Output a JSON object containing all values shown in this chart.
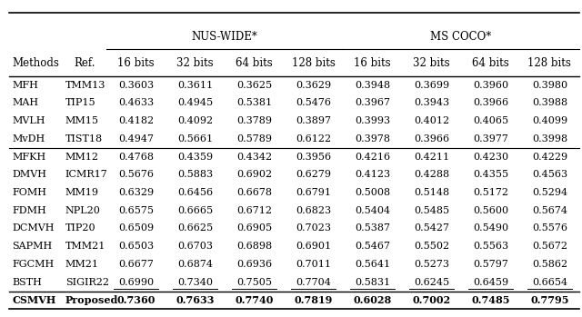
{
  "header_group1": "NUS-WIDE*",
  "header_group2": "MS COCO*",
  "col_headers_left": [
    "Methods",
    "Ref."
  ],
  "col_headers_bits": [
    "16 bits",
    "32 bits",
    "64 bits",
    "128 bits",
    "16 bits",
    "32 bits",
    "64 bits",
    "128 bits"
  ],
  "rows": [
    [
      "MFH",
      "TMM13",
      "0.3603",
      "0.3611",
      "0.3625",
      "0.3629",
      "0.3948",
      "0.3699",
      "0.3960",
      "0.3980"
    ],
    [
      "MAH",
      "TIP15",
      "0.4633",
      "0.4945",
      "0.5381",
      "0.5476",
      "0.3967",
      "0.3943",
      "0.3966",
      "0.3988"
    ],
    [
      "MVLH",
      "MM15",
      "0.4182",
      "0.4092",
      "0.3789",
      "0.3897",
      "0.3993",
      "0.4012",
      "0.4065",
      "0.4099"
    ],
    [
      "MvDH",
      "TIST18",
      "0.4947",
      "0.5661",
      "0.5789",
      "0.6122",
      "0.3978",
      "0.3966",
      "0.3977",
      "0.3998"
    ],
    [
      "MFKH",
      "MM12",
      "0.4768",
      "0.4359",
      "0.4342",
      "0.3956",
      "0.4216",
      "0.4211",
      "0.4230",
      "0.4229"
    ],
    [
      "DMVH",
      "ICMR17",
      "0.5676",
      "0.5883",
      "0.6902",
      "0.6279",
      "0.4123",
      "0.4288",
      "0.4355",
      "0.4563"
    ],
    [
      "FOMH",
      "MM19",
      "0.6329",
      "0.6456",
      "0.6678",
      "0.6791",
      "0.5008",
      "0.5148",
      "0.5172",
      "0.5294"
    ],
    [
      "FDMH",
      "NPL20",
      "0.6575",
      "0.6665",
      "0.6712",
      "0.6823",
      "0.5404",
      "0.5485",
      "0.5600",
      "0.5674"
    ],
    [
      "DCMVH",
      "TIP20",
      "0.6509",
      "0.6625",
      "0.6905",
      "0.7023",
      "0.5387",
      "0.5427",
      "0.5490",
      "0.5576"
    ],
    [
      "SAPMH",
      "TMM21",
      "0.6503",
      "0.6703",
      "0.6898",
      "0.6901",
      "0.5467",
      "0.5502",
      "0.5563",
      "0.5672"
    ],
    [
      "FGCMH",
      "MM21",
      "0.6677",
      "0.6874",
      "0.6936",
      "0.7011",
      "0.5641",
      "0.5273",
      "0.5797",
      "0.5862"
    ],
    [
      "BSTH",
      "SIGIR22",
      "0.6990",
      "0.7340",
      "0.7505",
      "0.7704",
      "0.5831",
      "0.6245",
      "0.6459",
      "0.6654"
    ],
    [
      "CSMVH",
      "Proposed",
      "0.7360",
      "0.7633",
      "0.7740",
      "0.7819",
      "0.6028",
      "0.7002",
      "0.7485",
      "0.7795"
    ]
  ],
  "underline_row": 11,
  "bold_row": 12,
  "sep_after_row3": true,
  "figsize": [
    6.4,
    3.49
  ],
  "dpi": 100,
  "fontsize": 8.0,
  "fontsize_header": 8.5
}
